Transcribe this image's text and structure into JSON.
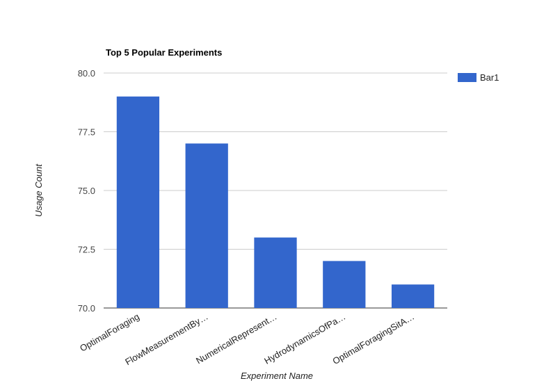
{
  "chart_data": {
    "type": "bar",
    "title": "Top 5 Popular Experiments",
    "xlabel": "Experiment Name",
    "ylabel": "Usage Count",
    "ylim": [
      70.0,
      80.0
    ],
    "yticks": [
      "70.0",
      "72.5",
      "75.0",
      "77.5",
      "80.0"
    ],
    "ytick_values": [
      70.0,
      72.5,
      75.0,
      77.5,
      80.0
    ],
    "categories": [
      "OptimalForaging",
      "FlowMeasurementBy…",
      "NumericalRepresent…",
      "HydrodynamicsOfPa…",
      "OptimalForagingSitA…"
    ],
    "series": [
      {
        "name": "Bar1",
        "values": [
          79,
          77,
          73,
          72,
          71
        ],
        "color": "#3366cc"
      }
    ],
    "grid": true,
    "legend_position": "right"
  }
}
